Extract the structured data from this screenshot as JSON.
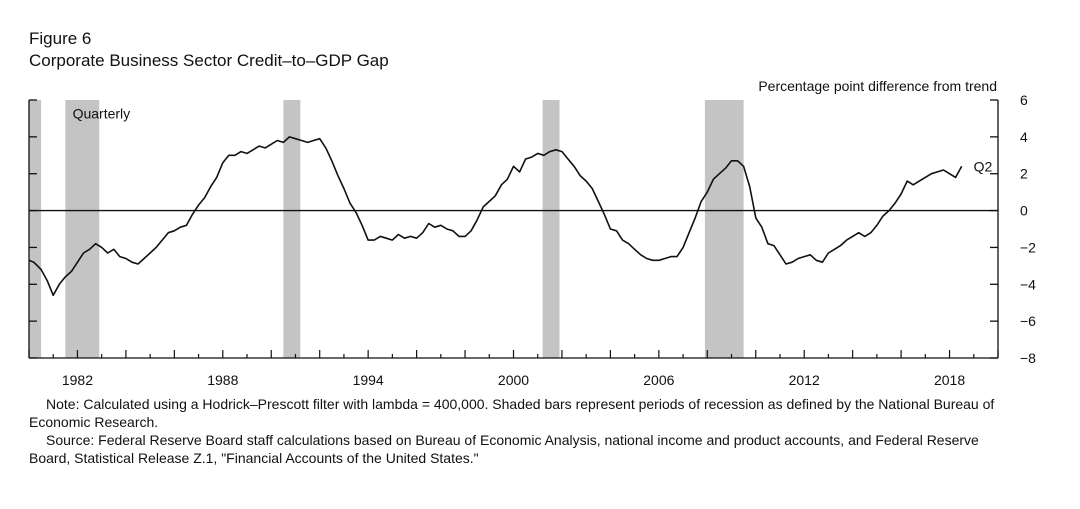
{
  "figure": {
    "label": "Figure 6",
    "title": "Corporate Business Sector Credit–to–GDP Gap",
    "units": "Percentage point difference from trend"
  },
  "notes": {
    "note": "Note: Calculated using a Hodrick–Prescott filter with lambda = 400,000. Shaded bars represent periods of recession as defined by the National Bureau of Economic Research.",
    "source": "Source: Federal Reserve Board staff calculations based on Bureau of Economic Analysis, national income and product accounts, and Federal Reserve Board, Statistical Release Z.1, \"Financial Accounts of the United States.\""
  },
  "chart_data": {
    "type": "line",
    "title": "Corporate Business Sector Credit–to–GDP Gap",
    "ylabel": "Percentage point difference from trend",
    "xlabel": "",
    "frequency_label": "Quarterly",
    "end_label": "Q2",
    "xlim": [
      1980.0,
      2020.0
    ],
    "ylim": [
      -8,
      6
    ],
    "x_ticks": [
      1982,
      1988,
      1994,
      2000,
      2006,
      2012,
      2018
    ],
    "y_ticks": [
      6,
      4,
      2,
      0,
      -2,
      -4,
      -6,
      -8
    ],
    "y_tick_labels": [
      "6",
      "4",
      "2",
      "0",
      "−2",
      "−4",
      "−6",
      "−8"
    ],
    "zero_line": 0,
    "recession_shading": [
      [
        1980.0,
        1980.5
      ],
      [
        1981.5,
        1982.9
      ],
      [
        1990.5,
        1991.2
      ],
      [
        2001.2,
        2001.9
      ],
      [
        2007.9,
        2009.5
      ]
    ],
    "series": [
      {
        "name": "Credit-to-GDP gap",
        "points": [
          [
            1980.0,
            -2.7
          ],
          [
            1980.2,
            -2.8
          ],
          [
            1980.5,
            -3.2
          ],
          [
            1980.75,
            -3.8
          ],
          [
            1981.0,
            -4.6
          ],
          [
            1981.25,
            -4.0
          ],
          [
            1981.5,
            -3.6
          ],
          [
            1981.75,
            -3.3
          ],
          [
            1982.0,
            -2.8
          ],
          [
            1982.25,
            -2.3
          ],
          [
            1982.5,
            -2.1
          ],
          [
            1982.75,
            -1.8
          ],
          [
            1983.0,
            -2.0
          ],
          [
            1983.25,
            -2.3
          ],
          [
            1983.5,
            -2.1
          ],
          [
            1983.75,
            -2.5
          ],
          [
            1984.0,
            -2.6
          ],
          [
            1984.25,
            -2.8
          ],
          [
            1984.5,
            -2.9
          ],
          [
            1984.75,
            -2.6
          ],
          [
            1985.0,
            -2.3
          ],
          [
            1985.25,
            -2.0
          ],
          [
            1985.5,
            -1.6
          ],
          [
            1985.75,
            -1.2
          ],
          [
            1986.0,
            -1.1
          ],
          [
            1986.25,
            -0.9
          ],
          [
            1986.5,
            -0.8
          ],
          [
            1986.75,
            -0.2
          ],
          [
            1987.0,
            0.3
          ],
          [
            1987.25,
            0.7
          ],
          [
            1987.5,
            1.3
          ],
          [
            1987.75,
            1.8
          ],
          [
            1988.0,
            2.6
          ],
          [
            1988.25,
            3.0
          ],
          [
            1988.5,
            3.0
          ],
          [
            1988.75,
            3.2
          ],
          [
            1989.0,
            3.1
          ],
          [
            1989.25,
            3.3
          ],
          [
            1989.5,
            3.5
          ],
          [
            1989.75,
            3.4
          ],
          [
            1990.0,
            3.6
          ],
          [
            1990.25,
            3.8
          ],
          [
            1990.5,
            3.7
          ],
          [
            1990.75,
            4.0
          ],
          [
            1991.0,
            3.9
          ],
          [
            1991.25,
            3.8
          ],
          [
            1991.5,
            3.7
          ],
          [
            1991.75,
            3.8
          ],
          [
            1992.0,
            3.9
          ],
          [
            1992.25,
            3.4
          ],
          [
            1992.5,
            2.7
          ],
          [
            1992.75,
            1.9
          ],
          [
            1993.0,
            1.2
          ],
          [
            1993.25,
            0.4
          ],
          [
            1993.5,
            -0.1
          ],
          [
            1993.75,
            -0.8
          ],
          [
            1994.0,
            -1.6
          ],
          [
            1994.25,
            -1.6
          ],
          [
            1994.5,
            -1.4
          ],
          [
            1994.75,
            -1.5
          ],
          [
            1995.0,
            -1.6
          ],
          [
            1995.25,
            -1.3
          ],
          [
            1995.5,
            -1.5
          ],
          [
            1995.75,
            -1.4
          ],
          [
            1996.0,
            -1.5
          ],
          [
            1996.25,
            -1.2
          ],
          [
            1996.5,
            -0.7
          ],
          [
            1996.75,
            -0.9
          ],
          [
            1997.0,
            -0.8
          ],
          [
            1997.25,
            -1.0
          ],
          [
            1997.5,
            -1.1
          ],
          [
            1997.75,
            -1.4
          ],
          [
            1998.0,
            -1.4
          ],
          [
            1998.25,
            -1.1
          ],
          [
            1998.5,
            -0.5
          ],
          [
            1998.75,
            0.2
          ],
          [
            1999.0,
            0.5
          ],
          [
            1999.25,
            0.8
          ],
          [
            1999.5,
            1.4
          ],
          [
            1999.75,
            1.7
          ],
          [
            2000.0,
            2.4
          ],
          [
            2000.25,
            2.1
          ],
          [
            2000.5,
            2.8
          ],
          [
            2000.75,
            2.9
          ],
          [
            2001.0,
            3.1
          ],
          [
            2001.25,
            3.0
          ],
          [
            2001.5,
            3.2
          ],
          [
            2001.75,
            3.3
          ],
          [
            2002.0,
            3.2
          ],
          [
            2002.25,
            2.8
          ],
          [
            2002.5,
            2.4
          ],
          [
            2002.75,
            1.9
          ],
          [
            2003.0,
            1.6
          ],
          [
            2003.25,
            1.2
          ],
          [
            2003.5,
            0.5
          ],
          [
            2003.75,
            -0.2
          ],
          [
            2004.0,
            -1.0
          ],
          [
            2004.25,
            -1.1
          ],
          [
            2004.5,
            -1.6
          ],
          [
            2004.75,
            -1.8
          ],
          [
            2005.0,
            -2.1
          ],
          [
            2005.25,
            -2.4
          ],
          [
            2005.5,
            -2.6
          ],
          [
            2005.75,
            -2.7
          ],
          [
            2006.0,
            -2.7
          ],
          [
            2006.25,
            -2.6
          ],
          [
            2006.5,
            -2.5
          ],
          [
            2006.75,
            -2.5
          ],
          [
            2007.0,
            -2.0
          ],
          [
            2007.25,
            -1.2
          ],
          [
            2007.5,
            -0.4
          ],
          [
            2007.75,
            0.5
          ],
          [
            2008.0,
            1.0
          ],
          [
            2008.25,
            1.7
          ],
          [
            2008.5,
            2.0
          ],
          [
            2008.75,
            2.3
          ],
          [
            2009.0,
            2.7
          ],
          [
            2009.25,
            2.7
          ],
          [
            2009.5,
            2.4
          ],
          [
            2009.75,
            1.3
          ],
          [
            2010.0,
            -0.4
          ],
          [
            2010.25,
            -0.9
          ],
          [
            2010.5,
            -1.8
          ],
          [
            2010.75,
            -1.9
          ],
          [
            2011.0,
            -2.4
          ],
          [
            2011.25,
            -2.9
          ],
          [
            2011.5,
            -2.8
          ],
          [
            2011.75,
            -2.6
          ],
          [
            2012.0,
            -2.5
          ],
          [
            2012.25,
            -2.4
          ],
          [
            2012.5,
            -2.7
          ],
          [
            2012.75,
            -2.8
          ],
          [
            2013.0,
            -2.3
          ],
          [
            2013.25,
            -2.1
          ],
          [
            2013.5,
            -1.9
          ],
          [
            2013.75,
            -1.6
          ],
          [
            2014.0,
            -1.4
          ],
          [
            2014.25,
            -1.2
          ],
          [
            2014.5,
            -1.4
          ],
          [
            2014.75,
            -1.2
          ],
          [
            2015.0,
            -0.8
          ],
          [
            2015.25,
            -0.3
          ],
          [
            2015.5,
            0.0
          ],
          [
            2015.75,
            0.4
          ],
          [
            2016.0,
            0.9
          ],
          [
            2016.25,
            1.6
          ],
          [
            2016.5,
            1.4
          ],
          [
            2016.75,
            1.6
          ],
          [
            2017.0,
            1.8
          ],
          [
            2017.25,
            2.0
          ],
          [
            2017.5,
            2.1
          ],
          [
            2017.75,
            2.2
          ],
          [
            2018.0,
            2.0
          ],
          [
            2018.25,
            1.8
          ],
          [
            2018.5,
            2.4
          ]
        ]
      }
    ]
  }
}
